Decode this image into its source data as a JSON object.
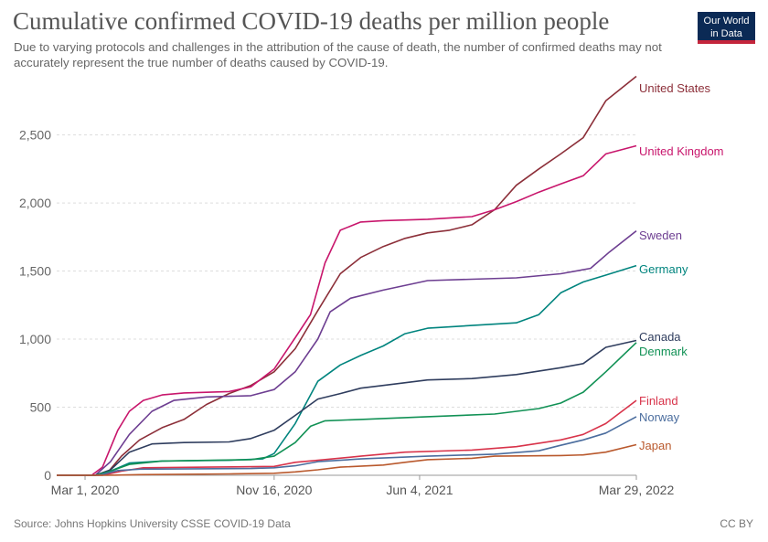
{
  "header": {
    "title": "Cumulative confirmed COVID-19 deaths per million people",
    "subtitle": "Due to varying protocols and challenges in the attribution of the cause of death, the number of confirmed deaths may not accurately represent the true number of deaths caused by COVID-19.",
    "logo_line1": "Our World",
    "logo_line2": "in Data"
  },
  "footer": {
    "source": "Source: Johns Hopkins University CSSE COVID-19 Data",
    "license": "CC BY"
  },
  "chart_data": {
    "type": "line",
    "title": "Cumulative confirmed COVID-19 deaths per million people",
    "xlabel": "",
    "ylabel": "",
    "xlim": [
      "2020-01-22",
      "2022-03-29"
    ],
    "ylim": [
      0,
      2900
    ],
    "y_ticks": [
      0,
      500,
      1000,
      1500,
      2000,
      2500
    ],
    "y_tick_labels": [
      "0",
      "500",
      "1,000",
      "1,500",
      "2,000",
      "2,500"
    ],
    "x_ticks": [
      "2020-03-01",
      "2020-11-16",
      "2021-06-04",
      "2022-03-29"
    ],
    "x_tick_labels": [
      "Mar 1, 2020",
      "Nov 16, 2020",
      "Jun 4, 2021",
      "Mar 29, 2022"
    ],
    "grid": "horizontal dashed",
    "legend": "inline labels at right end of lines",
    "series": [
      {
        "name": "United States",
        "color": "#8c2f39",
        "points": [
          [
            "2020-01-22",
            0
          ],
          [
            "2020-03-15",
            0
          ],
          [
            "2020-04-01",
            20
          ],
          [
            "2020-04-20",
            140
          ],
          [
            "2020-05-15",
            260
          ],
          [
            "2020-06-15",
            350
          ],
          [
            "2020-07-15",
            410
          ],
          [
            "2020-08-15",
            520
          ],
          [
            "2020-09-15",
            600
          ],
          [
            "2020-10-15",
            660
          ],
          [
            "2020-11-16",
            760
          ],
          [
            "2020-12-15",
            930
          ],
          [
            "2021-01-15",
            1210
          ],
          [
            "2021-02-15",
            1480
          ],
          [
            "2021-03-15",
            1600
          ],
          [
            "2021-04-15",
            1680
          ],
          [
            "2021-05-15",
            1740
          ],
          [
            "2021-06-15",
            1780
          ],
          [
            "2021-07-15",
            1800
          ],
          [
            "2021-08-15",
            1840
          ],
          [
            "2021-09-15",
            1950
          ],
          [
            "2021-10-15",
            2130
          ],
          [
            "2021-11-15",
            2250
          ],
          [
            "2021-12-15",
            2360
          ],
          [
            "2022-01-15",
            2480
          ],
          [
            "2022-02-15",
            2750
          ],
          [
            "2022-03-29",
            2930
          ]
        ]
      },
      {
        "name": "United Kingdom",
        "color": "#c8166c",
        "points": [
          [
            "2020-01-22",
            0
          ],
          [
            "2020-03-10",
            0
          ],
          [
            "2020-03-25",
            60
          ],
          [
            "2020-04-15",
            330
          ],
          [
            "2020-05-01",
            470
          ],
          [
            "2020-05-20",
            550
          ],
          [
            "2020-06-15",
            590
          ],
          [
            "2020-07-15",
            605
          ],
          [
            "2020-09-15",
            615
          ],
          [
            "2020-10-15",
            650
          ],
          [
            "2020-11-16",
            780
          ],
          [
            "2020-12-15",
            1010
          ],
          [
            "2021-01-05",
            1180
          ],
          [
            "2021-01-25",
            1560
          ],
          [
            "2021-02-15",
            1800
          ],
          [
            "2021-03-15",
            1860
          ],
          [
            "2021-04-15",
            1870
          ],
          [
            "2021-06-15",
            1880
          ],
          [
            "2021-08-15",
            1900
          ],
          [
            "2021-09-15",
            1950
          ],
          [
            "2021-10-15",
            2010
          ],
          [
            "2021-11-15",
            2080
          ],
          [
            "2021-12-15",
            2140
          ],
          [
            "2022-01-15",
            2200
          ],
          [
            "2022-02-15",
            2360
          ],
          [
            "2022-03-29",
            2420
          ]
        ]
      },
      {
        "name": "Sweden",
        "color": "#6d3e91",
        "points": [
          [
            "2020-01-22",
            0
          ],
          [
            "2020-03-15",
            0
          ],
          [
            "2020-04-05",
            100
          ],
          [
            "2020-05-01",
            300
          ],
          [
            "2020-06-01",
            470
          ],
          [
            "2020-07-01",
            550
          ],
          [
            "2020-08-15",
            575
          ],
          [
            "2020-10-15",
            585
          ],
          [
            "2020-11-16",
            630
          ],
          [
            "2020-12-15",
            760
          ],
          [
            "2021-01-15",
            1000
          ],
          [
            "2021-02-01",
            1200
          ],
          [
            "2021-03-01",
            1300
          ],
          [
            "2021-04-15",
            1360
          ],
          [
            "2021-06-15",
            1430
          ],
          [
            "2021-08-15",
            1440
          ],
          [
            "2021-10-15",
            1450
          ],
          [
            "2021-12-15",
            1480
          ],
          [
            "2022-01-25",
            1520
          ],
          [
            "2022-02-20",
            1640
          ],
          [
            "2022-03-29",
            1795
          ]
        ]
      },
      {
        "name": "Germany",
        "color": "#00847e",
        "points": [
          [
            "2020-01-22",
            0
          ],
          [
            "2020-03-15",
            0
          ],
          [
            "2020-04-05",
            30
          ],
          [
            "2020-05-01",
            90
          ],
          [
            "2020-06-15",
            105
          ],
          [
            "2020-09-15",
            110
          ],
          [
            "2020-10-31",
            120
          ],
          [
            "2020-11-16",
            160
          ],
          [
            "2020-12-15",
            380
          ],
          [
            "2021-01-15",
            690
          ],
          [
            "2021-02-15",
            810
          ],
          [
            "2021-03-15",
            880
          ],
          [
            "2021-04-15",
            950
          ],
          [
            "2021-05-15",
            1040
          ],
          [
            "2021-06-15",
            1080
          ],
          [
            "2021-08-15",
            1100
          ],
          [
            "2021-10-15",
            1120
          ],
          [
            "2021-11-15",
            1180
          ],
          [
            "2021-12-15",
            1340
          ],
          [
            "2022-01-15",
            1420
          ],
          [
            "2022-02-15",
            1470
          ],
          [
            "2022-03-29",
            1540
          ]
        ]
      },
      {
        "name": "Canada",
        "color": "#2f3d5e",
        "points": [
          [
            "2020-01-22",
            0
          ],
          [
            "2020-03-15",
            0
          ],
          [
            "2020-04-05",
            40
          ],
          [
            "2020-05-01",
            170
          ],
          [
            "2020-06-01",
            230
          ],
          [
            "2020-07-15",
            240
          ],
          [
            "2020-09-15",
            245
          ],
          [
            "2020-10-15",
            270
          ],
          [
            "2020-11-16",
            330
          ],
          [
            "2020-12-15",
            440
          ],
          [
            "2021-01-15",
            560
          ],
          [
            "2021-02-15",
            600
          ],
          [
            "2021-03-15",
            640
          ],
          [
            "2021-04-15",
            660
          ],
          [
            "2021-06-15",
            700
          ],
          [
            "2021-08-15",
            710
          ],
          [
            "2021-10-15",
            740
          ],
          [
            "2021-12-15",
            790
          ],
          [
            "2022-01-15",
            820
          ],
          [
            "2022-02-15",
            940
          ],
          [
            "2022-03-29",
            990
          ]
        ]
      },
      {
        "name": "Denmark",
        "color": "#119155",
        "points": [
          [
            "2020-01-22",
            0
          ],
          [
            "2020-03-15",
            0
          ],
          [
            "2020-04-05",
            30
          ],
          [
            "2020-05-01",
            80
          ],
          [
            "2020-06-15",
            105
          ],
          [
            "2020-10-15",
            115
          ],
          [
            "2020-11-16",
            140
          ],
          [
            "2020-12-15",
            240
          ],
          [
            "2021-01-05",
            360
          ],
          [
            "2021-01-25",
            400
          ],
          [
            "2021-03-15",
            410
          ],
          [
            "2021-06-15",
            430
          ],
          [
            "2021-09-15",
            450
          ],
          [
            "2021-11-15",
            490
          ],
          [
            "2021-12-15",
            530
          ],
          [
            "2022-01-15",
            610
          ],
          [
            "2022-02-15",
            760
          ],
          [
            "2022-03-29",
            975
          ]
        ]
      },
      {
        "name": "Finland",
        "color": "#d8334a",
        "points": [
          [
            "2020-01-22",
            0
          ],
          [
            "2020-03-25",
            0
          ],
          [
            "2020-04-20",
            30
          ],
          [
            "2020-05-20",
            55
          ],
          [
            "2020-08-15",
            60
          ],
          [
            "2020-11-16",
            65
          ],
          [
            "2020-12-15",
            95
          ],
          [
            "2021-01-15",
            110
          ],
          [
            "2021-03-15",
            140
          ],
          [
            "2021-05-15",
            170
          ],
          [
            "2021-08-15",
            185
          ],
          [
            "2021-10-15",
            210
          ],
          [
            "2021-12-15",
            260
          ],
          [
            "2022-01-15",
            300
          ],
          [
            "2022-02-15",
            380
          ],
          [
            "2022-03-29",
            550
          ]
        ]
      },
      {
        "name": "Norway",
        "color": "#4b6d9e",
        "points": [
          [
            "2020-01-22",
            0
          ],
          [
            "2020-03-20",
            0
          ],
          [
            "2020-04-15",
            35
          ],
          [
            "2020-05-15",
            45
          ],
          [
            "2020-10-15",
            50
          ],
          [
            "2020-11-16",
            55
          ],
          [
            "2020-12-15",
            70
          ],
          [
            "2021-01-15",
            100
          ],
          [
            "2021-03-15",
            120
          ],
          [
            "2021-06-15",
            140
          ],
          [
            "2021-09-15",
            155
          ],
          [
            "2021-11-15",
            180
          ],
          [
            "2021-12-15",
            220
          ],
          [
            "2022-01-15",
            260
          ],
          [
            "2022-02-15",
            310
          ],
          [
            "2022-03-29",
            430
          ]
        ]
      },
      {
        "name": "Japan",
        "color": "#b9592d",
        "points": [
          [
            "2020-01-22",
            0
          ],
          [
            "2020-04-01",
            0
          ],
          [
            "2020-05-15",
            5
          ],
          [
            "2020-09-15",
            10
          ],
          [
            "2020-11-16",
            15
          ],
          [
            "2020-12-15",
            25
          ],
          [
            "2021-01-15",
            40
          ],
          [
            "2021-02-15",
            60
          ],
          [
            "2021-04-15",
            75
          ],
          [
            "2021-05-15",
            95
          ],
          [
            "2021-06-15",
            115
          ],
          [
            "2021-08-15",
            125
          ],
          [
            "2021-09-15",
            140
          ],
          [
            "2021-12-15",
            145
          ],
          [
            "2022-01-15",
            150
          ],
          [
            "2022-02-15",
            170
          ],
          [
            "2022-03-29",
            225
          ]
        ]
      }
    ]
  }
}
